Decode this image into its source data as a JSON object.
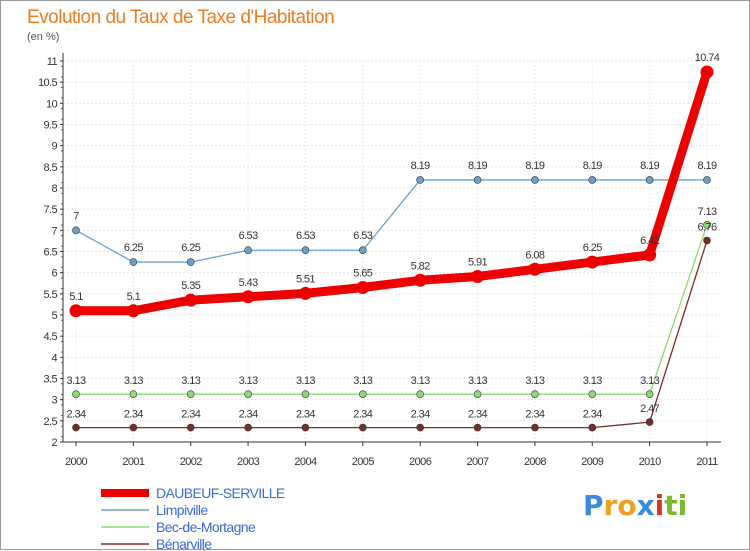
{
  "chart_data": {
    "type": "line",
    "title": "Evolution du Taux de Taxe d'Habitation",
    "subtitle": "(en %)",
    "xlabel": "",
    "ylabel": "",
    "categories": [
      "2000",
      "2001",
      "2002",
      "2003",
      "2004",
      "2005",
      "2006",
      "2007",
      "2008",
      "2009",
      "2010",
      "2011"
    ],
    "ylim": [
      2,
      11
    ],
    "yticks": [
      "2",
      "2.5",
      "3",
      "3.5",
      "4",
      "4.5",
      "5",
      "5.5",
      "6",
      "6.5",
      "7",
      "7.5",
      "8",
      "8.5",
      "9",
      "9.5",
      "10",
      "10.5",
      "11"
    ],
    "grid": true,
    "legend": "bottom-left",
    "series": [
      {
        "name": "DAUBEUF-SERVILLE",
        "color": "#ee0000",
        "values": [
          5.1,
          5.1,
          5.35,
          5.43,
          5.51,
          5.65,
          5.82,
          5.91,
          6.08,
          6.25,
          6.42,
          10.74
        ],
        "labels": [
          "5.1",
          "5.1",
          "5.35",
          "5.43",
          "5.51",
          "5.65",
          "5.82",
          "5.91",
          "6.08",
          "6.25",
          "6.42",
          "10.74"
        ]
      },
      {
        "name": "Limpiville",
        "color": "#6a9fd0",
        "values": [
          7,
          6.25,
          6.25,
          6.53,
          6.53,
          6.53,
          8.19,
          8.19,
          8.19,
          8.19,
          8.19,
          8.19
        ],
        "labels": [
          "7",
          "6.25",
          "6.25",
          "6.53",
          "6.53",
          "6.53",
          "8.19",
          "8.19",
          "8.19",
          "8.19",
          "8.19",
          "8.19"
        ]
      },
      {
        "name": "Bec-de-Mortagne",
        "color": "#90d870",
        "values": [
          3.13,
          3.13,
          3.13,
          3.13,
          3.13,
          3.13,
          3.13,
          3.13,
          3.13,
          3.13,
          3.13,
          7.13
        ],
        "labels": [
          "3.13",
          "3.13",
          "3.13",
          "3.13",
          "3.13",
          "3.13",
          "3.13",
          "3.13",
          "3.13",
          "3.13",
          "3.13",
          "7.13"
        ]
      },
      {
        "name": "Bénarville",
        "color": "#7a2a2a",
        "values": [
          2.34,
          2.34,
          2.34,
          2.34,
          2.34,
          2.34,
          2.34,
          2.34,
          2.34,
          2.34,
          2.47,
          6.76
        ],
        "labels": [
          "2.34",
          "2.34",
          "2.34",
          "2.34",
          "2.34",
          "2.34",
          "2.34",
          "2.34",
          "2.34",
          "2.34",
          "2.47",
          "6.76"
        ]
      }
    ]
  },
  "logo": {
    "letters": [
      "P",
      "r",
      "o",
      "x",
      "i",
      "t",
      "i"
    ],
    "colors": [
      "#3a8ad8",
      "#f0a020",
      "#f0a020",
      "#3a8ad8",
      "#e03020",
      "#7ab830",
      "#7ab830"
    ]
  }
}
